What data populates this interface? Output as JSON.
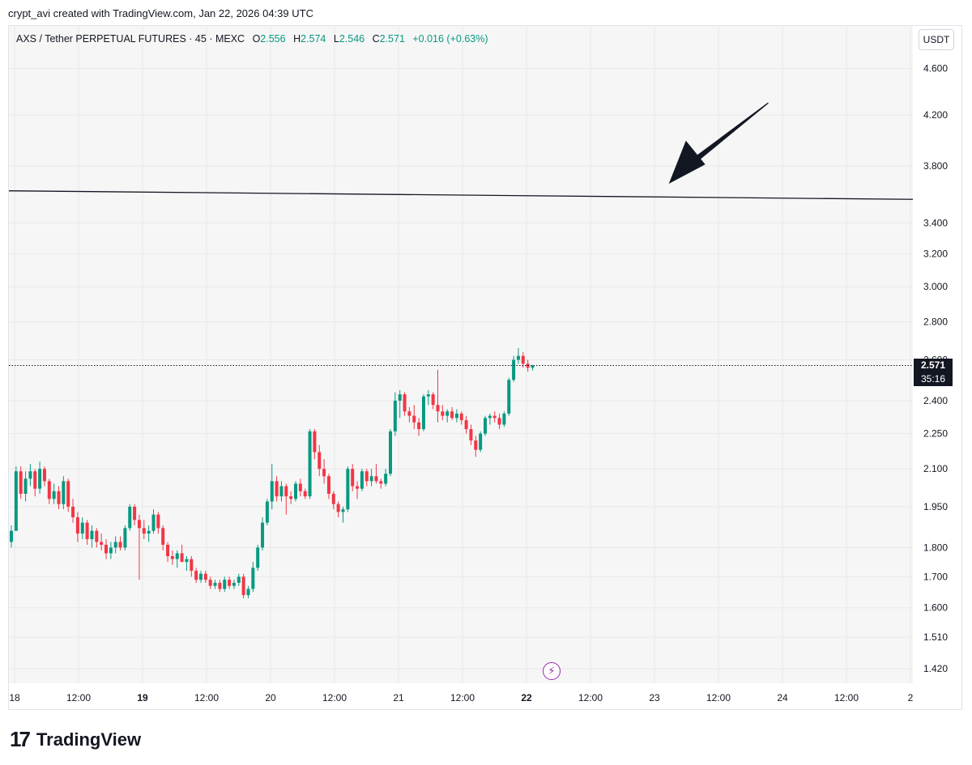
{
  "caption": "crypt_avi created with TradingView.com, Jan 22, 2026 04:39 UTC",
  "legend": {
    "symbol": "AXS / Tether PERPETUAL FUTURES",
    "interval": "45",
    "exchange": "MEXC",
    "o_label": "O",
    "o": "2.556",
    "h_label": "H",
    "h": "2.574",
    "l_label": "L",
    "l": "2.546",
    "c_label": "C",
    "c": "2.571",
    "change": "+0.016 (+0.63%)"
  },
  "currency_button": "USDT",
  "current_price": {
    "price": "2.571",
    "countdown": "35:16"
  },
  "brand": {
    "name": "TradingView",
    "logo_icon": "tradingview-logo-icon"
  },
  "realtime_icon": "lightning-icon",
  "colors": {
    "up": "#089981",
    "down": "#f23645",
    "line": "#131722",
    "background": "#f6f6f6"
  },
  "chart_data": {
    "type": "candlestick",
    "scale": "log",
    "ylim": [
      1.38,
      5.0
    ],
    "y_ticks": [
      "4.600",
      "4.200",
      "3.800",
      "3.400",
      "3.200",
      "3.000",
      "2.800",
      "2.600",
      "2.400",
      "2.250",
      "2.100",
      "1.950",
      "1.800",
      "1.700",
      "1.600",
      "1.510",
      "1.420"
    ],
    "x_ticks": [
      "18",
      "12:00",
      "19",
      "12:00",
      "20",
      "12:00",
      "21",
      "12:00",
      "22",
      "12:00",
      "23",
      "12:00",
      "24",
      "12:00",
      "2"
    ],
    "x_bold": [
      "19",
      "22"
    ],
    "trendline": {
      "start": [
        0,
        3.62
      ],
      "end": [
        1,
        3.56
      ]
    },
    "arrow": {
      "from": [
        0.84,
        4.3
      ],
      "to": [
        0.73,
        3.67
      ]
    },
    "candles_ohlc": [
      [
        1.82,
        1.88,
        1.8,
        1.86
      ],
      [
        1.86,
        2.11,
        1.86,
        2.09
      ],
      [
        2.09,
        2.11,
        1.98,
        2.0
      ],
      [
        2.0,
        2.09,
        1.97,
        2.06
      ],
      [
        2.06,
        2.12,
        2.03,
        2.09
      ],
      [
        2.09,
        2.1,
        1.99,
        2.02
      ],
      [
        2.02,
        2.13,
        2.0,
        2.1
      ],
      [
        2.1,
        2.11,
        2.03,
        2.05
      ],
      [
        2.05,
        2.06,
        1.96,
        1.98
      ],
      [
        1.98,
        2.04,
        1.96,
        2.01
      ],
      [
        2.01,
        2.03,
        1.94,
        1.96
      ],
      [
        1.96,
        2.07,
        1.94,
        2.05
      ],
      [
        2.05,
        2.06,
        1.93,
        1.95
      ],
      [
        1.95,
        1.98,
        1.89,
        1.91
      ],
      [
        1.91,
        1.93,
        1.82,
        1.85
      ],
      [
        1.85,
        1.91,
        1.83,
        1.89
      ],
      [
        1.89,
        1.9,
        1.81,
        1.83
      ],
      [
        1.83,
        1.88,
        1.8,
        1.86
      ],
      [
        1.86,
        1.87,
        1.8,
        1.82
      ],
      [
        1.82,
        1.85,
        1.79,
        1.81
      ],
      [
        1.81,
        1.83,
        1.76,
        1.78
      ],
      [
        1.78,
        1.82,
        1.76,
        1.8
      ],
      [
        1.8,
        1.84,
        1.78,
        1.82
      ],
      [
        1.82,
        1.84,
        1.79,
        1.8
      ],
      [
        1.8,
        1.88,
        1.79,
        1.87
      ],
      [
        1.87,
        1.96,
        1.86,
        1.95
      ],
      [
        1.95,
        1.96,
        1.88,
        1.9
      ],
      [
        1.9,
        1.92,
        1.69,
        1.87
      ],
      [
        1.87,
        1.9,
        1.83,
        1.85
      ],
      [
        1.85,
        1.88,
        1.82,
        1.86
      ],
      [
        1.86,
        1.94,
        1.85,
        1.92
      ],
      [
        1.92,
        1.93,
        1.85,
        1.87
      ],
      [
        1.87,
        1.88,
        1.79,
        1.81
      ],
      [
        1.81,
        1.82,
        1.75,
        1.77
      ],
      [
        1.77,
        1.79,
        1.74,
        1.76
      ],
      [
        1.76,
        1.79,
        1.73,
        1.78
      ],
      [
        1.78,
        1.81,
        1.76,
        1.75
      ],
      [
        1.75,
        1.77,
        1.72,
        1.76
      ],
      [
        1.76,
        1.77,
        1.7,
        1.72
      ],
      [
        1.72,
        1.73,
        1.68,
        1.69
      ],
      [
        1.69,
        1.72,
        1.68,
        1.71
      ],
      [
        1.71,
        1.72,
        1.68,
        1.69
      ],
      [
        1.69,
        1.7,
        1.66,
        1.67
      ],
      [
        1.67,
        1.69,
        1.66,
        1.68
      ],
      [
        1.68,
        1.69,
        1.65,
        1.66
      ],
      [
        1.66,
        1.7,
        1.65,
        1.69
      ],
      [
        1.69,
        1.7,
        1.66,
        1.67
      ],
      [
        1.67,
        1.69,
        1.66,
        1.68
      ],
      [
        1.68,
        1.71,
        1.67,
        1.7
      ],
      [
        1.7,
        1.71,
        1.63,
        1.64
      ],
      [
        1.64,
        1.67,
        1.63,
        1.66
      ],
      [
        1.66,
        1.75,
        1.65,
        1.73
      ],
      [
        1.73,
        1.81,
        1.72,
        1.8
      ],
      [
        1.8,
        1.91,
        1.79,
        1.89
      ],
      [
        1.89,
        1.98,
        1.88,
        1.97
      ],
      [
        1.97,
        2.12,
        1.94,
        2.05
      ],
      [
        2.05,
        2.07,
        1.97,
        1.99
      ],
      [
        1.99,
        2.05,
        1.97,
        2.03
      ],
      [
        2.03,
        2.04,
        1.92,
        1.99
      ],
      [
        1.99,
        2.01,
        1.96,
        1.98
      ],
      [
        1.98,
        2.05,
        1.97,
        2.04
      ],
      [
        2.04,
        2.06,
        1.99,
        2.01
      ],
      [
        2.01,
        2.02,
        1.98,
        1.99
      ],
      [
        1.99,
        2.27,
        1.98,
        2.26
      ],
      [
        2.26,
        2.27,
        2.14,
        2.17
      ],
      [
        2.17,
        2.2,
        2.07,
        2.1
      ],
      [
        2.1,
        2.14,
        2.04,
        2.07
      ],
      [
        2.07,
        2.08,
        1.98,
        2.0
      ],
      [
        2.0,
        2.01,
        1.94,
        1.96
      ],
      [
        1.96,
        1.97,
        1.91,
        1.93
      ],
      [
        1.93,
        1.95,
        1.89,
        1.94
      ],
      [
        1.94,
        2.11,
        1.93,
        2.1
      ],
      [
        2.1,
        2.12,
        2.01,
        2.03
      ],
      [
        2.03,
        2.05,
        1.98,
        2.02
      ],
      [
        2.02,
        2.1,
        2.01,
        2.09
      ],
      [
        2.09,
        2.1,
        2.03,
        2.05
      ],
      [
        2.05,
        2.1,
        2.03,
        2.07
      ],
      [
        2.07,
        2.12,
        2.04,
        2.05
      ],
      [
        2.05,
        2.06,
        2.02,
        2.04
      ],
      [
        2.04,
        2.1,
        2.03,
        2.08
      ],
      [
        2.08,
        2.27,
        2.07,
        2.26
      ],
      [
        2.26,
        2.44,
        2.24,
        2.4
      ],
      [
        2.4,
        2.45,
        2.32,
        2.43
      ],
      [
        2.43,
        2.44,
        2.33,
        2.35
      ],
      [
        2.35,
        2.37,
        2.3,
        2.33
      ],
      [
        2.33,
        2.38,
        2.27,
        2.3
      ],
      [
        2.3,
        2.32,
        2.24,
        2.27
      ],
      [
        2.27,
        2.43,
        2.26,
        2.42
      ],
      [
        2.42,
        2.45,
        2.38,
        2.43
      ],
      [
        2.43,
        2.44,
        2.36,
        2.38
      ],
      [
        2.38,
        2.55,
        2.3,
        2.35
      ],
      [
        2.35,
        2.38,
        2.31,
        2.33
      ],
      [
        2.33,
        2.36,
        2.3,
        2.35
      ],
      [
        2.35,
        2.37,
        2.31,
        2.32
      ],
      [
        2.32,
        2.36,
        2.3,
        2.34
      ],
      [
        2.34,
        2.35,
        2.29,
        2.31
      ],
      [
        2.31,
        2.33,
        2.25,
        2.27
      ],
      [
        2.27,
        2.29,
        2.2,
        2.22
      ],
      [
        2.22,
        2.24,
        2.15,
        2.18
      ],
      [
        2.18,
        2.26,
        2.17,
        2.25
      ],
      [
        2.25,
        2.33,
        2.24,
        2.32
      ],
      [
        2.32,
        2.34,
        2.29,
        2.33
      ],
      [
        2.33,
        2.35,
        2.3,
        2.32
      ],
      [
        2.32,
        2.34,
        2.27,
        2.29
      ],
      [
        2.29,
        2.35,
        2.28,
        2.34
      ],
      [
        2.34,
        2.51,
        2.33,
        2.5
      ],
      [
        2.5,
        2.62,
        2.49,
        2.6
      ],
      [
        2.6,
        2.66,
        2.58,
        2.62
      ],
      [
        2.62,
        2.64,
        2.56,
        2.58
      ],
      [
        2.58,
        2.6,
        2.54,
        2.56
      ],
      [
        2.56,
        2.574,
        2.546,
        2.571
      ]
    ]
  }
}
